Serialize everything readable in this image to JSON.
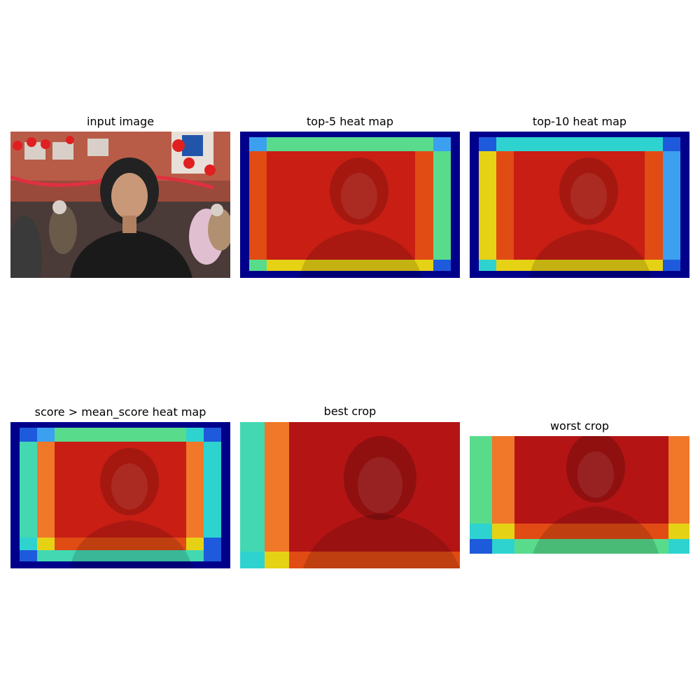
{
  "panels": {
    "p1": {
      "title": "input image"
    },
    "p2": {
      "title": "top-5 heat map"
    },
    "p3": {
      "title": "top-10 heat map"
    },
    "p4": {
      "title": "score > mean_score heat map"
    },
    "p5": {
      "title": "best crop"
    },
    "p6": {
      "title": "worst crop"
    }
  },
  "colors": {
    "navy": "#00008b",
    "blue": "#1e5adc",
    "lightblue": "#3ca0f0",
    "cyan": "#2ed3d0",
    "teal": "#43d8b2",
    "green": "#58dc8c",
    "yellow": "#e6d214",
    "orange": "#f07828",
    "redorange": "#e14b14",
    "red": "#c81e14",
    "darkred": "#a00f0f"
  }
}
